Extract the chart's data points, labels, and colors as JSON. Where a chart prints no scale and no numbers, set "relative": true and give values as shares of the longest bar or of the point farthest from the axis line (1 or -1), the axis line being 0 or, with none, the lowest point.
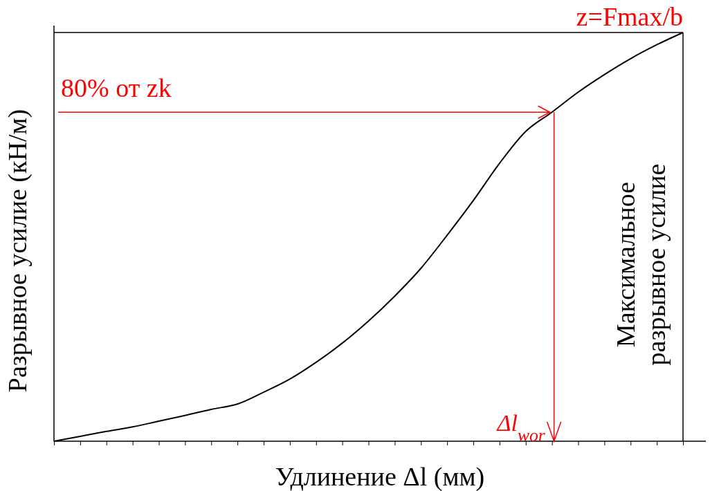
{
  "chart_data": {
    "type": "line",
    "relative": true,
    "xlabel": "Удлинение Δl (мм)",
    "ylabel": "Разрывное усилие (кН/м)",
    "categories": [
      null,
      null,
      null,
      null,
      null,
      null,
      null,
      null,
      null,
      null,
      null,
      null,
      null,
      null,
      null,
      null,
      null,
      null,
      null,
      null,
      null,
      null,
      null,
      null,
      null
    ],
    "series": [
      {
        "color": "#000000",
        "values": [
          0,
          0.012,
          0.024,
          0.035,
          0.049,
          0.063,
          0.078,
          0.091,
          0.12,
          0.152,
          0.193,
          0.24,
          0.294,
          0.355,
          0.423,
          0.504,
          0.589,
          0.68,
          0.758,
          0.805,
          0.854,
          0.897,
          0.936,
          0.97,
          1
        ]
      }
    ],
    "ref_lines": [
      {
        "axis": "y",
        "value": 1,
        "label": "z=Fmax/b",
        "color": "#000000"
      }
    ],
    "annotations": [
      "80% от zk",
      "Δl$_{wor}$",
      "Максимальное разрывное усилие"
    ],
    "marker": "none",
    "line_style": "solid"
  }
}
